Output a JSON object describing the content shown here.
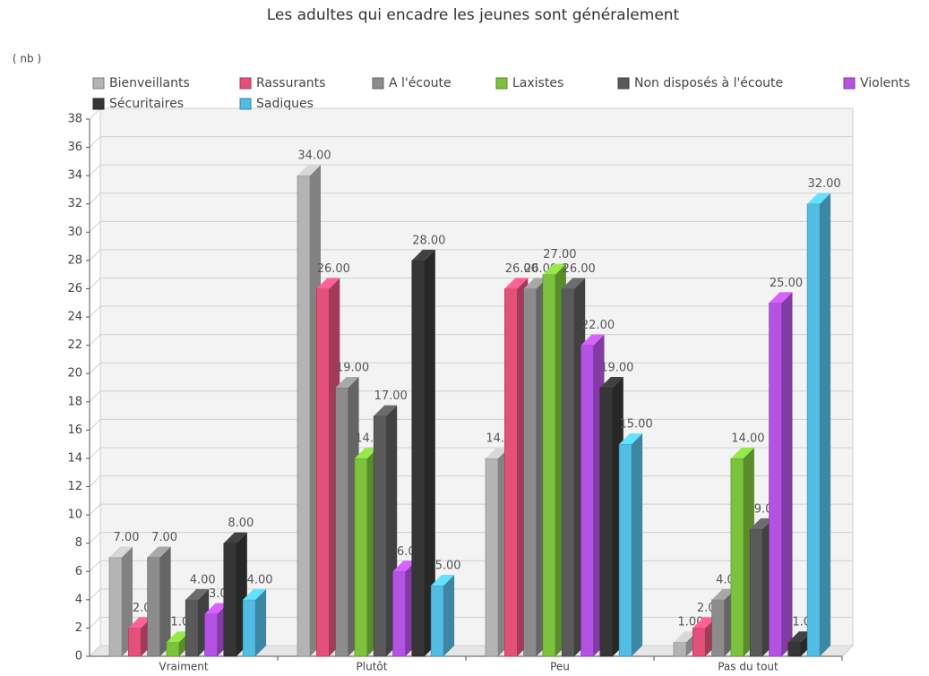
{
  "chart_data": {
    "type": "bar3d",
    "title": "Les adultes qui encadre les jeunes sont généralement",
    "y_label": "( nb )",
    "categories": [
      "Vraiment",
      "Plutôt",
      "Peu",
      "Pas du tout"
    ],
    "series": [
      {
        "name": "Bienveillants",
        "color": "#b4b4b4",
        "values": [
          7,
          34,
          14,
          1
        ],
        "value_labels": [
          "7.00",
          "34.00",
          "14.00",
          "1.00"
        ]
      },
      {
        "name": "Rassurants",
        "color": "#e4507c",
        "values": [
          2,
          26,
          26,
          2
        ],
        "value_labels": [
          "2.00",
          "26.00",
          "26.00",
          "2.00"
        ]
      },
      {
        "name": "A l'écoute",
        "color": "#8c8c8c",
        "values": [
          7,
          19,
          26,
          4
        ],
        "value_labels": [
          "7.00",
          "19.00",
          "26.00",
          "4.00"
        ]
      },
      {
        "name": "Laxistes",
        "color": "#7cc23c",
        "values": [
          1,
          14,
          27,
          14
        ],
        "value_labels": [
          "1.00",
          "14.00",
          "27.00",
          "14.00"
        ]
      },
      {
        "name": "Non disposés à l'écoute",
        "color": "#5a5a5a",
        "values": [
          4,
          17,
          26,
          9
        ],
        "value_labels": [
          "4.00",
          "17.00",
          "26.00",
          "9.00"
        ]
      },
      {
        "name": "Violents",
        "color": "#b452e4",
        "values": [
          3,
          6,
          22,
          25
        ],
        "value_labels": [
          "3.00",
          "6.00",
          "22.00",
          "25.00"
        ]
      },
      {
        "name": "Sécuritaires",
        "color": "#363636",
        "values": [
          8,
          28,
          19,
          1
        ],
        "value_labels": [
          "8.00",
          "28.00",
          "19.00",
          "1.00"
        ]
      },
      {
        "name": "Sadiques",
        "color": "#52bce4",
        "values": [
          4,
          5,
          15,
          32
        ],
        "value_labels": [
          "4.00",
          "5.00",
          "15.00",
          "32.00"
        ]
      }
    ],
    "ylim": [
      0,
      38
    ],
    "yticks": [
      0,
      2,
      4,
      6,
      8,
      10,
      12,
      14,
      16,
      18,
      20,
      22,
      24,
      26,
      28,
      30,
      32,
      34,
      36,
      38
    ],
    "grid": true
  }
}
